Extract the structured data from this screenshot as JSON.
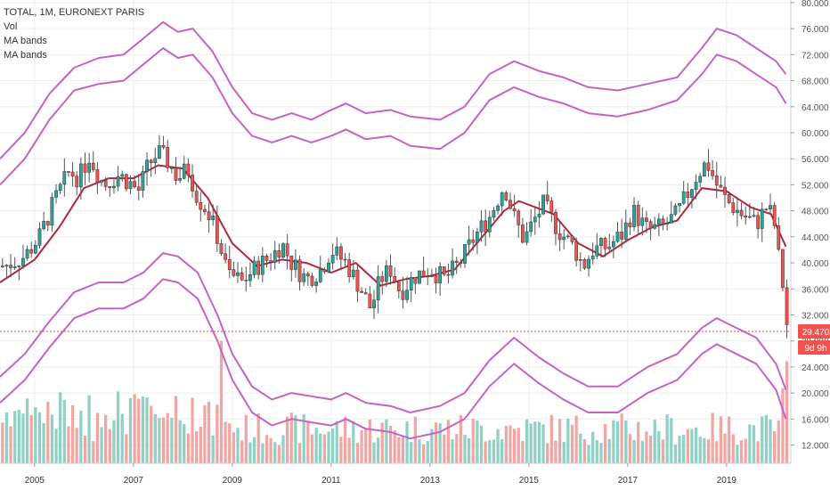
{
  "legend": {
    "title": "TOTAL, 1M, EURONEXT PARIS",
    "vol": "Vol",
    "band1": "MA bands",
    "band2": "MA bands"
  },
  "last_price": "29.470",
  "countdown": "9d 9h",
  "colors": {
    "up": "#26a69a",
    "down": "#ef5350",
    "vol_up": "#8fd1c4",
    "vol_down": "#f2a6a4",
    "ma": "#b2263f",
    "band": "#c563c5",
    "price_line": "#e04a4a",
    "grid": "#eeeeee"
  },
  "chart_data": {
    "type": "candlestick",
    "yaxis_ticks": [
      "12.000",
      "16.000",
      "20.000",
      "24.000",
      "28.000",
      "32.000",
      "36.000",
      "40.000",
      "44.000",
      "48.000",
      "52.000",
      "56.000",
      "60.000",
      "64.000",
      "68.000",
      "72.000",
      "76.000",
      "80.000"
    ],
    "ylim": [
      9.2,
      80.4
    ],
    "xaxis_ticks": [
      "2005",
      "2007",
      "2009",
      "2011",
      "2013",
      "2015",
      "2017",
      "2019"
    ],
    "xlim_years": [
      2004.3,
      2020.3
    ],
    "last_price_value": 29.47,
    "close_path": [
      [
        2004.4,
        39.5
      ],
      [
        2004.8,
        41.0
      ],
      [
        2005.1,
        44.0
      ],
      [
        2005.4,
        49.5
      ],
      [
        2005.7,
        54.0
      ],
      [
        2005.9,
        53.0
      ],
      [
        2006.1,
        56.5
      ],
      [
        2006.4,
        52.0
      ],
      [
        2006.7,
        53.5
      ],
      [
        2006.9,
        52.5
      ],
      [
        2007.1,
        51.0
      ],
      [
        2007.3,
        55.0
      ],
      [
        2007.5,
        57.0
      ],
      [
        2007.7,
        55.5
      ],
      [
        2007.9,
        53.0
      ],
      [
        2008.1,
        54.5
      ],
      [
        2008.3,
        50.0
      ],
      [
        2008.5,
        48.0
      ],
      [
        2008.7,
        44.0
      ],
      [
        2008.9,
        38.5
      ],
      [
        2009.2,
        37.0
      ],
      [
        2009.5,
        39.5
      ],
      [
        2009.8,
        41.0
      ],
      [
        2010.0,
        43.0
      ],
      [
        2010.2,
        40.0
      ],
      [
        2010.5,
        37.5
      ],
      [
        2010.8,
        39.0
      ],
      [
        2011.0,
        42.0
      ],
      [
        2011.3,
        40.0
      ],
      [
        2011.6,
        36.0
      ],
      [
        2011.8,
        33.0
      ],
      [
        2012.0,
        37.5
      ],
      [
        2012.2,
        39.0
      ],
      [
        2012.4,
        35.5
      ],
      [
        2012.7,
        38.0
      ],
      [
        2013.0,
        39.0
      ],
      [
        2013.3,
        37.5
      ],
      [
        2013.6,
        40.0
      ],
      [
        2013.9,
        44.0
      ],
      [
        2014.2,
        47.0
      ],
      [
        2014.5,
        52.0
      ],
      [
        2014.7,
        47.0
      ],
      [
        2014.9,
        43.5
      ],
      [
        2015.1,
        46.5
      ],
      [
        2015.3,
        49.0
      ],
      [
        2015.6,
        45.0
      ],
      [
        2015.9,
        42.5
      ],
      [
        2016.1,
        39.5
      ],
      [
        2016.3,
        42.0
      ],
      [
        2016.6,
        42.5
      ],
      [
        2016.9,
        44.5
      ],
      [
        2017.1,
        48.0
      ],
      [
        2017.4,
        45.0
      ],
      [
        2017.7,
        45.5
      ],
      [
        2018.0,
        47.5
      ],
      [
        2018.2,
        50.5
      ],
      [
        2018.4,
        53.5
      ],
      [
        2018.6,
        55.5
      ],
      [
        2018.8,
        52.0
      ],
      [
        2019.0,
        49.5
      ],
      [
        2019.3,
        47.5
      ],
      [
        2019.6,
        46.0
      ],
      [
        2019.8,
        48.5
      ],
      [
        2019.95,
        47.0
      ],
      [
        2020.05,
        41.0
      ],
      [
        2020.15,
        36.0
      ],
      [
        2020.22,
        29.47
      ]
    ],
    "ma_line": [
      [
        2004.3,
        37.0
      ],
      [
        2005.0,
        40.5
      ],
      [
        2005.5,
        45.5
      ],
      [
        2006.0,
        51.5
      ],
      [
        2006.5,
        53.0
      ],
      [
        2007.0,
        53.0
      ],
      [
        2007.5,
        55.0
      ],
      [
        2008.0,
        54.5
      ],
      [
        2008.5,
        50.0
      ],
      [
        2009.0,
        43.0
      ],
      [
        2009.5,
        39.5
      ],
      [
        2010.0,
        40.5
      ],
      [
        2010.5,
        40.0
      ],
      [
        2011.0,
        38.5
      ],
      [
        2011.5,
        40.0
      ],
      [
        2012.0,
        36.5
      ],
      [
        2012.5,
        37.5
      ],
      [
        2013.0,
        38.0
      ],
      [
        2013.5,
        39.0
      ],
      [
        2014.0,
        43.5
      ],
      [
        2014.5,
        48.0
      ],
      [
        2014.8,
        49.5
      ],
      [
        2015.5,
        47.5
      ],
      [
        2016.0,
        43.0
      ],
      [
        2016.5,
        41.0
      ],
      [
        2017.0,
        43.5
      ],
      [
        2017.5,
        45.5
      ],
      [
        2018.0,
        46.5
      ],
      [
        2018.5,
        51.5
      ],
      [
        2019.0,
        51.0
      ],
      [
        2019.5,
        48.5
      ],
      [
        2019.9,
        47.5
      ],
      [
        2020.2,
        42.5
      ]
    ],
    "band_upper_outer": [
      [
        2004.3,
        56.0
      ],
      [
        2004.8,
        60.0
      ],
      [
        2005.3,
        66.0
      ],
      [
        2005.8,
        70.0
      ],
      [
        2006.3,
        71.5
      ],
      [
        2006.8,
        72.0
      ],
      [
        2007.2,
        74.5
      ],
      [
        2007.6,
        77.0
      ],
      [
        2007.9,
        75.5
      ],
      [
        2008.2,
        76.0
      ],
      [
        2008.6,
        72.5
      ],
      [
        2009.0,
        67.0
      ],
      [
        2009.4,
        63.0
      ],
      [
        2009.8,
        62.0
      ],
      [
        2010.2,
        63.0
      ],
      [
        2010.6,
        62.0
      ],
      [
        2011.0,
        63.5
      ],
      [
        2011.3,
        64.5
      ],
      [
        2011.7,
        63.0
      ],
      [
        2012.2,
        63.5
      ],
      [
        2012.6,
        62.5
      ],
      [
        2013.2,
        62.0
      ],
      [
        2013.7,
        64.0
      ],
      [
        2014.2,
        69.0
      ],
      [
        2014.7,
        71.0
      ],
      [
        2015.2,
        69.5
      ],
      [
        2015.7,
        68.5
      ],
      [
        2016.2,
        67.0
      ],
      [
        2016.8,
        66.5
      ],
      [
        2017.4,
        67.5
      ],
      [
        2018.0,
        68.5
      ],
      [
        2018.5,
        73.0
      ],
      [
        2018.8,
        76.0
      ],
      [
        2019.2,
        75.0
      ],
      [
        2019.6,
        73.0
      ],
      [
        2020.0,
        71.0
      ],
      [
        2020.2,
        69.0
      ]
    ],
    "band_upper_inner": [
      [
        2004.3,
        52.0
      ],
      [
        2004.8,
        56.0
      ],
      [
        2005.3,
        62.0
      ],
      [
        2005.8,
        66.5
      ],
      [
        2006.3,
        67.5
      ],
      [
        2006.8,
        68.0
      ],
      [
        2007.2,
        70.5
      ],
      [
        2007.6,
        73.0
      ],
      [
        2007.9,
        71.5
      ],
      [
        2008.2,
        72.0
      ],
      [
        2008.6,
        68.5
      ],
      [
        2009.0,
        63.0
      ],
      [
        2009.4,
        59.5
      ],
      [
        2009.8,
        58.5
      ],
      [
        2010.2,
        59.5
      ],
      [
        2010.6,
        58.5
      ],
      [
        2011.0,
        59.5
      ],
      [
        2011.3,
        60.5
      ],
      [
        2011.7,
        59.0
      ],
      [
        2012.2,
        59.5
      ],
      [
        2012.6,
        58.0
      ],
      [
        2013.2,
        57.5
      ],
      [
        2013.7,
        60.0
      ],
      [
        2014.2,
        65.0
      ],
      [
        2014.7,
        67.0
      ],
      [
        2015.2,
        65.5
      ],
      [
        2015.7,
        64.5
      ],
      [
        2016.2,
        63.0
      ],
      [
        2016.8,
        62.5
      ],
      [
        2017.4,
        63.5
      ],
      [
        2018.0,
        65.0
      ],
      [
        2018.5,
        69.0
      ],
      [
        2018.8,
        72.0
      ],
      [
        2019.2,
        71.0
      ],
      [
        2019.6,
        69.0
      ],
      [
        2020.0,
        67.0
      ],
      [
        2020.2,
        64.5
      ]
    ],
    "band_lower_inner": [
      [
        2004.3,
        18.5
      ],
      [
        2004.8,
        22.0
      ],
      [
        2005.3,
        27.0
      ],
      [
        2005.8,
        31.5
      ],
      [
        2006.3,
        33.0
      ],
      [
        2006.8,
        33.0
      ],
      [
        2007.2,
        34.5
      ],
      [
        2007.6,
        37.5
      ],
      [
        2007.9,
        37.0
      ],
      [
        2008.3,
        34.5
      ],
      [
        2008.7,
        28.0
      ],
      [
        2009.0,
        22.0
      ],
      [
        2009.4,
        17.0
      ],
      [
        2009.8,
        15.0
      ],
      [
        2010.2,
        16.0
      ],
      [
        2010.6,
        15.5
      ],
      [
        2011.0,
        15.0
      ],
      [
        2011.3,
        16.0
      ],
      [
        2011.7,
        14.5
      ],
      [
        2012.2,
        14.0
      ],
      [
        2012.6,
        13.0
      ],
      [
        2013.2,
        14.0
      ],
      [
        2013.7,
        16.0
      ],
      [
        2014.2,
        21.0
      ],
      [
        2014.7,
        24.5
      ],
      [
        2015.2,
        21.5
      ],
      [
        2015.7,
        19.0
      ],
      [
        2016.2,
        17.0
      ],
      [
        2016.8,
        17.0
      ],
      [
        2017.4,
        20.0
      ],
      [
        2018.0,
        22.0
      ],
      [
        2018.5,
        26.0
      ],
      [
        2018.8,
        27.5
      ],
      [
        2019.2,
        26.0
      ],
      [
        2019.6,
        24.5
      ],
      [
        2020.0,
        20.5
      ],
      [
        2020.2,
        16.0
      ]
    ],
    "band_lower_outer": [
      [
        2004.3,
        22.5
      ],
      [
        2004.8,
        26.0
      ],
      [
        2005.3,
        31.0
      ],
      [
        2005.8,
        35.5
      ],
      [
        2006.3,
        37.0
      ],
      [
        2006.8,
        37.0
      ],
      [
        2007.2,
        38.5
      ],
      [
        2007.6,
        41.5
      ],
      [
        2007.9,
        41.0
      ],
      [
        2008.3,
        38.5
      ],
      [
        2008.7,
        32.0
      ],
      [
        2009.0,
        26.0
      ],
      [
        2009.4,
        21.0
      ],
      [
        2009.8,
        19.0
      ],
      [
        2010.2,
        20.0
      ],
      [
        2010.6,
        19.5
      ],
      [
        2011.0,
        19.0
      ],
      [
        2011.3,
        20.0
      ],
      [
        2011.7,
        18.5
      ],
      [
        2012.2,
        18.0
      ],
      [
        2012.6,
        17.0
      ],
      [
        2013.2,
        18.0
      ],
      [
        2013.7,
        20.0
      ],
      [
        2014.2,
        25.0
      ],
      [
        2014.7,
        28.5
      ],
      [
        2015.2,
        25.5
      ],
      [
        2015.7,
        23.0
      ],
      [
        2016.2,
        21.0
      ],
      [
        2016.8,
        21.0
      ],
      [
        2017.4,
        24.0
      ],
      [
        2018.0,
        26.0
      ],
      [
        2018.5,
        30.0
      ],
      [
        2018.8,
        31.5
      ],
      [
        2019.2,
        30.0
      ],
      [
        2019.6,
        28.5
      ],
      [
        2020.0,
        24.5
      ],
      [
        2020.2,
        20.5
      ]
    ],
    "volume_scale": {
      "min": 9.2,
      "note": "volume bars occupy lower region of price scale"
    },
    "grid": true
  }
}
